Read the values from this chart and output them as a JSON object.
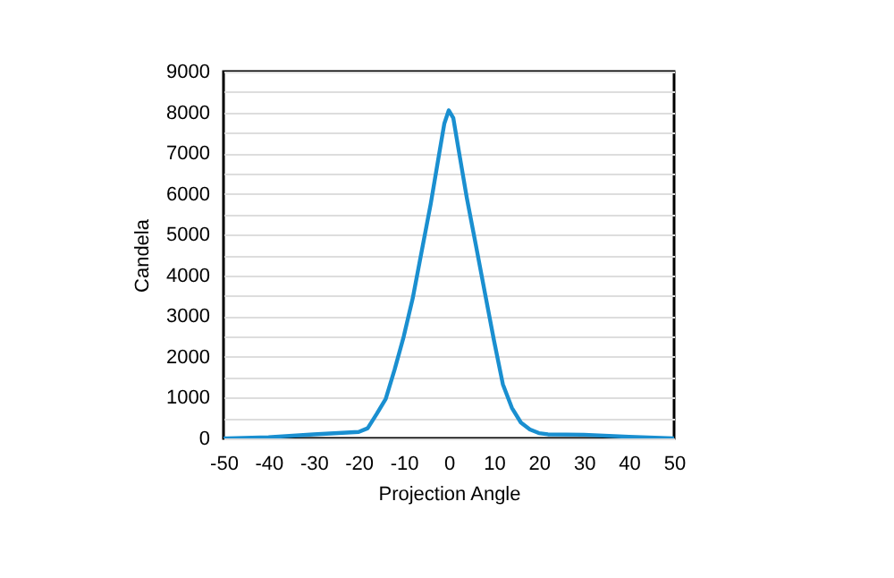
{
  "chart_data": {
    "type": "line",
    "xlabel": "Projection Angle",
    "ylabel": "Candela",
    "x": [
      -50,
      -40,
      -30,
      -20,
      -18,
      -16,
      -14,
      -12,
      -10,
      -8,
      -6,
      -4,
      -2,
      -1,
      0,
      1,
      2,
      4,
      6,
      8,
      10,
      12,
      14,
      16,
      18,
      20,
      22,
      30,
      40,
      50
    ],
    "series": [
      {
        "color": "#1a8fd0",
        "values": [
          0,
          30,
          100,
          160,
          250,
          600,
          970,
          1700,
          2500,
          3440,
          4600,
          5760,
          7070,
          7720,
          8050,
          7860,
          7200,
          5900,
          4750,
          3580,
          2420,
          1330,
          750,
          390,
          220,
          130,
          100,
          90,
          40,
          0
        ]
      }
    ],
    "xlim": [
      -50,
      50
    ],
    "xticks": [
      -50,
      -40,
      -30,
      -20,
      -10,
      0,
      10,
      20,
      30,
      40,
      50
    ],
    "ylim": [
      0,
      9000
    ],
    "yticks": [
      0,
      {
        "value": 500,
        "label": null
      },
      1000,
      {
        "value": 1500,
        "label": null
      },
      2000,
      {
        "value": 2500,
        "label": null
      },
      3000,
      {
        "value": 3500,
        "label": null
      },
      4000,
      {
        "value": 4500,
        "label": null
      },
      5000,
      {
        "value": 5500,
        "label": null
      },
      6000,
      {
        "value": 6500,
        "label": null
      },
      7000,
      {
        "value": 7500,
        "label": null
      },
      8000,
      {
        "value": 8500,
        "label": null
      },
      9000
    ],
    "grid": "y",
    "marker": "none",
    "line_style": "solid"
  }
}
